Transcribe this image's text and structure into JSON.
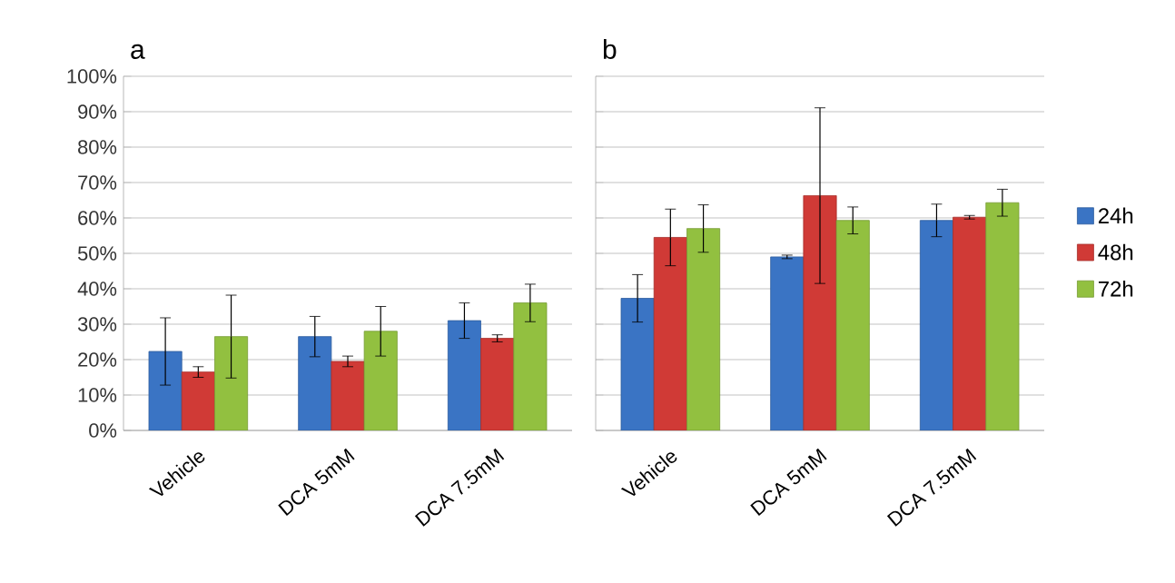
{
  "chart_data": [
    {
      "type": "bar",
      "title": "a",
      "categories": [
        "Vehicle",
        "DCA 5mM",
        "DCA 7.5mM"
      ],
      "series": [
        {
          "color": "#3a74c4",
          "values": [
            22.3,
            26.5,
            31
          ],
          "errors": [
            9.5,
            5.7,
            5
          ]
        },
        {
          "color": "#d03a36",
          "values": [
            16.5,
            19.5,
            26
          ],
          "errors": [
            1.5,
            1.5,
            1
          ]
        },
        {
          "color": "#92c040",
          "values": [
            26.5,
            28,
            36
          ],
          "errors": [
            11.7,
            7,
            5.3
          ]
        }
      ],
      "ylim": [
        0,
        100
      ],
      "yticks": [
        {
          "value": 0,
          "label": "0%"
        },
        {
          "value": 10,
          "label": "10%"
        },
        {
          "value": 20,
          "label": "20%"
        },
        {
          "value": 30,
          "label": "30%"
        },
        {
          "value": 40,
          "label": "40%"
        },
        {
          "value": 50,
          "label": "50%"
        },
        {
          "value": 60,
          "label": "60%"
        },
        {
          "value": 70,
          "label": "70%"
        },
        {
          "value": 80,
          "label": "80%"
        },
        {
          "value": 90,
          "label": "90%"
        },
        {
          "value": 100,
          "label": "100%"
        }
      ],
      "grid": "y"
    },
    {
      "type": "bar",
      "title": "b",
      "categories": [
        "Vehicle",
        "DCA 5mM",
        "DCA 7.5mM"
      ],
      "series": [
        {
          "name": "24h",
          "color": "#3a74c4",
          "values": [
            37.3,
            49,
            59.3
          ],
          "errors": [
            6.7,
            0.5,
            4.6
          ]
        },
        {
          "name": "48h",
          "color": "#d03a36",
          "values": [
            54.5,
            66.3,
            60.2
          ],
          "errors": [
            8,
            24.8,
            0.5
          ]
        },
        {
          "name": "72h",
          "color": "#92c040",
          "values": [
            57,
            59.3,
            64.3
          ],
          "errors": [
            6.7,
            3.8,
            3.8
          ]
        }
      ],
      "ylim": [
        0,
        100
      ],
      "yticks": [
        0,
        10,
        20,
        30,
        40,
        50,
        60,
        70,
        80,
        90,
        100
      ],
      "tick_labels": "x",
      "grid": "y",
      "legend": "right"
    }
  ]
}
